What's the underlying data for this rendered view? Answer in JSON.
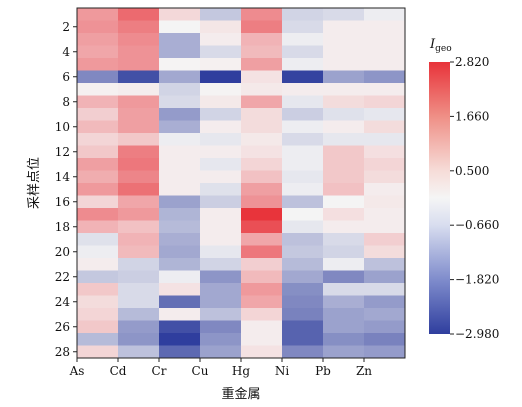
{
  "chart_data": {
    "type": "heatmap",
    "xlabel": "重金属",
    "ylabel": "采样点位",
    "x_categories": [
      "As",
      "Cd",
      "Cr",
      "Cu",
      "Hg",
      "Ni",
      "Pb",
      "Zn"
    ],
    "y_categories": [
      1,
      2,
      3,
      4,
      5,
      6,
      7,
      8,
      9,
      10,
      11,
      12,
      13,
      14,
      15,
      16,
      17,
      18,
      19,
      20,
      21,
      22,
      23,
      24,
      25,
      26,
      27,
      28
    ],
    "y_tick_labels": [
      "2",
      "4",
      "6",
      "8",
      "10",
      "12",
      "14",
      "16",
      "18",
      "20",
      "22",
      "24",
      "26",
      "28"
    ],
    "values": [
      [
        1.3,
        2.0,
        0.35,
        -0.8,
        1.5,
        -0.6,
        -0.5,
        -0.2
      ],
      [
        1.4,
        1.7,
        -0.1,
        0.15,
        1.7,
        -0.5,
        0.05,
        0.05
      ],
      [
        1.2,
        1.5,
        -1.2,
        0.05,
        0.9,
        -0.2,
        0.05,
        0.05
      ],
      [
        1.1,
        1.4,
        -1.2,
        -0.5,
        0.8,
        -0.5,
        0.05,
        0.05
      ],
      [
        1.3,
        1.4,
        -0.05,
        0.0,
        1.2,
        -0.2,
        0.05,
        0.05
      ],
      [
        -1.8,
        -2.7,
        -1.3,
        -2.98,
        0.2,
        -2.9,
        -1.4,
        -1.6
      ],
      [
        0.0,
        0.05,
        -0.6,
        -0.05,
        0.1,
        0.05,
        0.05,
        0.05
      ],
      [
        0.9,
        1.3,
        -0.5,
        0.1,
        1.1,
        -0.3,
        0.3,
        0.4
      ],
      [
        0.5,
        1.2,
        -1.5,
        -0.6,
        0.3,
        -0.7,
        -0.4,
        -0.3
      ],
      [
        0.8,
        1.2,
        -1.2,
        0.05,
        0.3,
        -0.2,
        0.05,
        0.3
      ],
      [
        0.4,
        0.6,
        -0.2,
        -0.3,
        0.1,
        -0.5,
        -0.3,
        -0.3
      ],
      [
        0.6,
        1.7,
        0.05,
        0.05,
        0.2,
        -0.2,
        0.6,
        0.25
      ],
      [
        1.2,
        1.8,
        0.05,
        -0.3,
        0.4,
        -0.2,
        0.6,
        0.4
      ],
      [
        1.0,
        1.6,
        0.05,
        0.05,
        0.7,
        -0.3,
        0.6,
        0.3
      ],
      [
        1.3,
        1.9,
        0.05,
        -0.4,
        1.2,
        -0.2,
        0.7,
        0.05
      ],
      [
        0.4,
        1.1,
        -1.4,
        -0.7,
        1.4,
        -0.9,
        -0.1,
        0.1
      ],
      [
        1.5,
        1.3,
        -1.1,
        0.05,
        2.8,
        -0.1,
        0.25,
        0.05
      ],
      [
        0.9,
        0.7,
        -1.0,
        0.05,
        2.4,
        -0.3,
        0.05,
        0.05
      ],
      [
        -0.4,
        0.9,
        -1.2,
        0.05,
        1.1,
        -0.9,
        -0.5,
        0.5
      ],
      [
        -0.2,
        0.8,
        -1.3,
        -0.3,
        1.8,
        -0.8,
        -0.6,
        0.3
      ],
      [
        0.05,
        -0.6,
        -1.1,
        -0.6,
        0.5,
        -1.0,
        -0.2,
        -0.9
      ],
      [
        -0.8,
        -0.7,
        -0.2,
        -1.6,
        0.8,
        -1.3,
        -1.8,
        -1.4
      ],
      [
        0.6,
        -0.5,
        0.2,
        -1.3,
        1.3,
        -1.7,
        -0.5,
        -0.5
      ],
      [
        0.3,
        -0.5,
        -2.2,
        -1.3,
        1.1,
        -1.8,
        -1.2,
        -1.5
      ],
      [
        0.4,
        -1.0,
        0.05,
        -0.9,
        0.4,
        -1.9,
        -1.4,
        -1.3
      ],
      [
        0.6,
        -1.5,
        -2.7,
        -1.8,
        0.05,
        -2.4,
        -1.4,
        -1.5
      ],
      [
        -1.0,
        -1.6,
        -2.98,
        -1.6,
        0.05,
        -2.4,
        -1.7,
        -1.9
      ],
      [
        0.4,
        -0.9,
        -2.3,
        -1.4,
        0.2,
        -1.8,
        -1.4,
        -1.5
      ]
    ],
    "colorbar": {
      "title_main": "I",
      "title_sub": "geo",
      "min": -2.98,
      "max": 2.82,
      "ticks": [
        2.82,
        1.66,
        0.5,
        -0.66,
        -1.82,
        -2.98
      ],
      "tick_labels": [
        "2.820",
        "1.660",
        "0.500",
        "−0.660",
        "−1.820",
        "−2.980"
      ]
    },
    "colors": {
      "low": "#2f3e9e",
      "mid": "#f5f5f5",
      "high": "#e8333a"
    },
    "grid": false,
    "legend_position": "right"
  }
}
